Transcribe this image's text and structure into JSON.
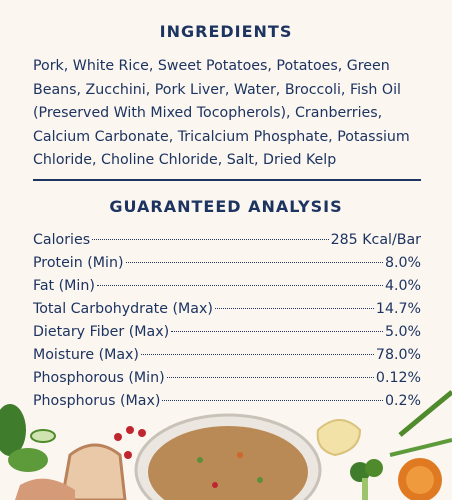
{
  "ingredients": {
    "title": "INGREDIENTS",
    "text": "Pork, White Rice, Sweet Potatoes, Potatoes, Green Beans, Zucchini, Pork Liver, Water, Broccoli, Fish Oil (Preserved With Mixed Tocopherols), Cranberries, Calcium Carbonate, Tricalcium Phosphate, Potassium Chloride, Choline Chloride, Salt, Dried Kelp"
  },
  "analysis": {
    "title": "GUARANTEED ANALYSIS",
    "rows": [
      [
        "Calories",
        "285 Kcal/Bar"
      ],
      [
        "Protein (Min)",
        "8.0%"
      ],
      [
        "Fat (Min)",
        "4.0%"
      ],
      [
        "Total Carbohydrate (Max)",
        "14.7%"
      ],
      [
        "Dietary Fiber (Max)",
        "5.0%"
      ],
      [
        "Moisture (Max)",
        "78.0%"
      ],
      [
        "Phosphorous (Min)",
        "0.12%"
      ],
      [
        "Phosphorus (Max)",
        "0.2%"
      ]
    ]
  }
}
